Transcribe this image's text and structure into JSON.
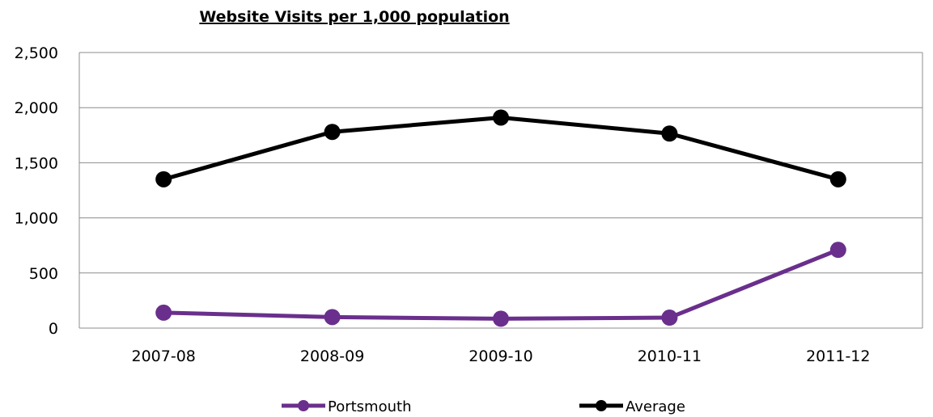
{
  "chart_data": {
    "type": "line",
    "title": "Website Visits per 1,000 population",
    "xlabel": "",
    "ylabel": "",
    "categories": [
      "2007-08",
      "2008-09",
      "2009-10",
      "2010-11",
      "2011-12"
    ],
    "ylim": [
      0,
      2500
    ],
    "yticks": [
      0,
      500,
      1000,
      1500,
      2000,
      2500
    ],
    "ytick_labels": [
      "0",
      "500",
      "1,000",
      "1,500",
      "2,000",
      "2,500"
    ],
    "grid": true,
    "legend": "bottom",
    "series": [
      {
        "name": "Portsmouth",
        "color": "#6a2f8c",
        "values": [
          140,
          100,
          85,
          95,
          710
        ]
      },
      {
        "name": "Average",
        "color": "#000000",
        "values": [
          1350,
          1780,
          1910,
          1765,
          1350
        ]
      }
    ]
  }
}
